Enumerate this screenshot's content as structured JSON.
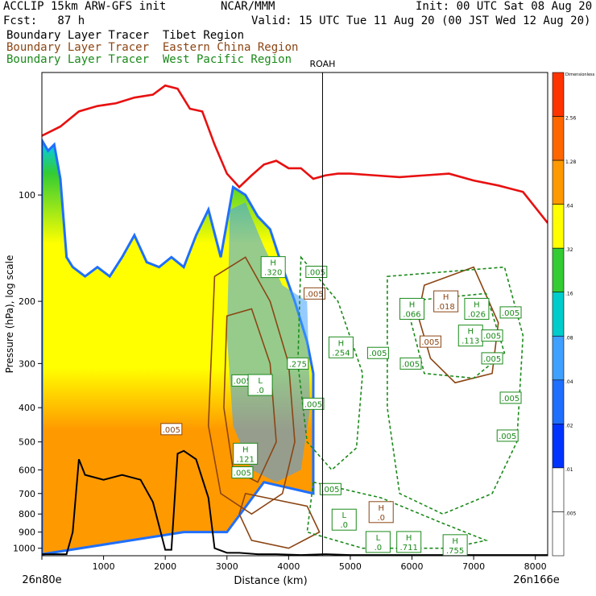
{
  "header": {
    "model": "ACCLIP 15km ARW-GFS init",
    "fcst": "Fcst:   87 h",
    "org": "NCAR/MMM",
    "init": "Init: 00 UTC Sat 08 Aug 20",
    "valid": "Valid: 15 UTC Tue 11 Aug 20 (00 JST Wed 12 Aug 20)"
  },
  "legend": [
    {
      "label": "Boundary Layer Tracer  Tibet Region",
      "color": "#000000"
    },
    {
      "label": "Boundary Layer Tracer  Eastern China Region",
      "color": "#8b4513"
    },
    {
      "label": "Boundary Layer Tracer  West Pacific Region",
      "color": "#1a8a1a"
    }
  ],
  "chart_data": {
    "type": "cross-section",
    "xlabel": "Distance (km)",
    "ylabel": "Pressure (hPa), log scale",
    "xlim": [
      0,
      8200
    ],
    "ylim": [
      1050,
      45
    ],
    "xticks": [
      0,
      1000,
      2000,
      3000,
      4000,
      5000,
      6000,
      7000,
      8000
    ],
    "yticks": [
      100,
      200,
      300,
      400,
      500,
      600,
      700,
      800,
      900,
      1000
    ],
    "left_endpoint": "26n80e",
    "right_endpoint": "26n166e",
    "station": {
      "name": "ROAH",
      "x": 4550
    },
    "colorbar": {
      "ticks": [
        ".005",
        ".01",
        ".02",
        ".04",
        ".08",
        ".16",
        ".32",
        ".64",
        "1.28",
        "2.56",
        "Dimensionless"
      ],
      "colors": [
        "#ffffff",
        "#ffffff",
        "#0033ff",
        "#1f6fff",
        "#3fa0ff",
        "#00cccc",
        "#33cc33",
        "#ffff00",
        "#ff9900",
        "#ff6600",
        "#ff3300"
      ]
    },
    "tropopause": {
      "x": [
        0,
        300,
        600,
        900,
        1200,
        1500,
        1800,
        2000,
        2200,
        2400,
        2600,
        2800,
        3000,
        3200,
        3400,
        3600,
        3800,
        4000,
        4200,
        4400,
        4600,
        4800,
        5000,
        5400,
        5800,
        6200,
        6600,
        7000,
        7400,
        7800,
        8200
      ],
      "p": [
        68,
        64,
        58,
        56,
        55,
        53,
        52,
        49,
        50,
        57,
        58,
        72,
        87,
        95,
        88,
        82,
        80,
        84,
        84,
        90,
        88,
        87,
        87,
        88,
        89,
        88,
        87,
        91,
        94,
        98,
        120
      ]
    },
    "terrain": {
      "x": [
        0,
        200,
        400,
        500,
        600,
        700,
        1000,
        1300,
        1600,
        1800,
        2000,
        2100,
        2200,
        2300,
        2500,
        2700,
        2800,
        3000,
        3200,
        3500,
        3800,
        4200,
        4600,
        5000,
        6000,
        7000,
        8200
      ],
      "p": [
        1040,
        1040,
        1040,
        900,
        560,
        620,
        640,
        620,
        640,
        740,
        1010,
        1010,
        540,
        530,
        560,
        720,
        1000,
        1030,
        1030,
        1040,
        1040,
        1045,
        1040,
        1045,
        1045,
        1045,
        1045
      ]
    },
    "boxes": [
      {
        "text": ".005",
        "x": 4450,
        "p": 165,
        "series": "west-pacific"
      },
      {
        "text": ".005",
        "x": 4420,
        "p": 190,
        "series": "eastern-china"
      },
      {
        "text": "H .320",
        "x": 3750,
        "p": 160,
        "series": "west-pacific"
      },
      {
        "text": ".275",
        "x": 4150,
        "p": 300,
        "series": "west-pacific"
      },
      {
        "text": "H .254",
        "x": 4850,
        "p": 270,
        "series": "west-pacific"
      },
      {
        "text": ".005",
        "x": 5450,
        "p": 280,
        "series": "west-pacific"
      },
      {
        "text": ".005",
        "x": 3250,
        "p": 335,
        "series": "west-pacific"
      },
      {
        "text": "L .0",
        "x": 3540,
        "p": 345,
        "series": "west-pacific"
      },
      {
        "text": ".005",
        "x": 4400,
        "p": 390,
        "series": "west-pacific"
      },
      {
        "text": ".005",
        "x": 2100,
        "p": 460,
        "series": "eastern-china"
      },
      {
        "text": "H .121",
        "x": 3300,
        "p": 540,
        "series": "west-pacific"
      },
      {
        "text": ".005",
        "x": 3250,
        "p": 610,
        "series": "west-pacific"
      },
      {
        "text": ".005",
        "x": 4680,
        "p": 680,
        "series": "west-pacific"
      },
      {
        "text": "L .0",
        "x": 4900,
        "p": 830,
        "series": "west-pacific"
      },
      {
        "text": "H .0",
        "x": 5500,
        "p": 790,
        "series": "eastern-china"
      },
      {
        "text": "L .0",
        "x": 5450,
        "p": 960,
        "series": "west-pacific"
      },
      {
        "text": "H .711",
        "x": 5950,
        "p": 960,
        "series": "west-pacific"
      },
      {
        "text": "H .755",
        "x": 6700,
        "p": 980,
        "series": "west-pacific"
      },
      {
        "text": "H .066",
        "x": 6000,
        "p": 210,
        "series": "west-pacific"
      },
      {
        "text": "H .018",
        "x": 6550,
        "p": 200,
        "series": "eastern-china"
      },
      {
        "text": "H .026",
        "x": 7050,
        "p": 210,
        "series": "west-pacific"
      },
      {
        "text": ".005",
        "x": 7600,
        "p": 215,
        "series": "west-pacific"
      },
      {
        "text": "H .113",
        "x": 6950,
        "p": 250,
        "series": "west-pacific"
      },
      {
        "text": ".005",
        "x": 7300,
        "p": 250,
        "series": "west-pacific"
      },
      {
        "text": ".005",
        "x": 6300,
        "p": 260,
        "series": "eastern-china"
      },
      {
        "text": ".005",
        "x": 7300,
        "p": 290,
        "series": "west-pacific"
      },
      {
        "text": ".005",
        "x": 5980,
        "p": 300,
        "series": "west-pacific"
      },
      {
        "text": ".005",
        "x": 7600,
        "p": 375,
        "series": "west-pacific"
      },
      {
        "text": ".005",
        "x": 7550,
        "p": 480,
        "series": "west-pacific"
      }
    ],
    "filled_field": {
      "series": "Tibet",
      "top_pressure_by_x": {
        "x": [
          0,
          100,
          200,
          300,
          400,
          500,
          700,
          900,
          1100,
          1300,
          1500,
          1700,
          1900,
          2100,
          2300,
          2500,
          2700,
          2900,
          3100,
          3300,
          3500,
          3700,
          3900,
          4100,
          4300,
          4400
        ],
        "p": [
          70,
          75,
          72,
          90,
          150,
          160,
          170,
          160,
          170,
          150,
          130,
          155,
          160,
          150,
          160,
          130,
          110,
          150,
          95,
          100,
          115,
          125,
          160,
          200,
          260,
          320
        ]
      }
    }
  }
}
